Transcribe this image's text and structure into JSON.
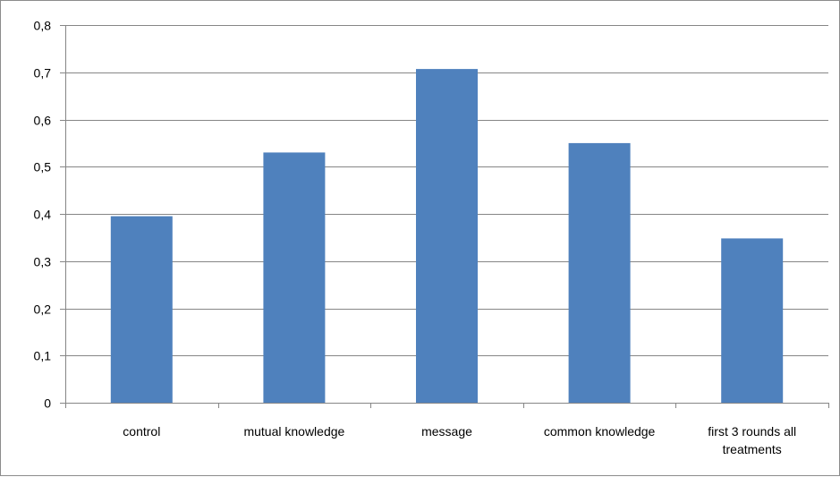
{
  "chart_data": {
    "type": "bar",
    "title": "",
    "xlabel": "",
    "ylabel": "",
    "categories": [
      [
        "control"
      ],
      [
        "mutual knowledge"
      ],
      [
        "message"
      ],
      [
        "common knowledge"
      ],
      [
        "first 3 rounds all",
        "treatments"
      ]
    ],
    "values": [
      0.395,
      0.53,
      0.707,
      0.55,
      0.348
    ],
    "ylim": [
      0,
      0.8
    ],
    "yticks": [
      0,
      0.1,
      0.2,
      0.3,
      0.4,
      0.5,
      0.6,
      0.7,
      0.8
    ],
    "ytick_labels": [
      "0",
      "0,1",
      "0,2",
      "0,3",
      "0,4",
      "0,5",
      "0,6",
      "0,7",
      "0,8"
    ],
    "grid": true,
    "legend": "none",
    "bar_color": "#4f81bd",
    "grid_color": "#868686",
    "axis_color": "#868686"
  }
}
